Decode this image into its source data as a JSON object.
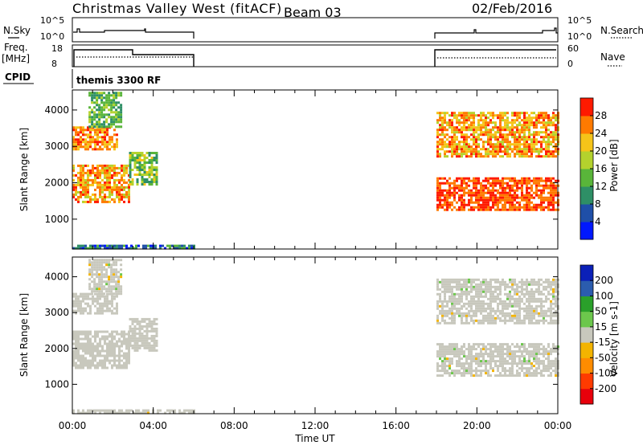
{
  "header": {
    "station": "Christmas Valley West (fitACF)",
    "beam": "Beam 03",
    "date": "02/Feb/2016"
  },
  "status_labels": {
    "nsky": "N.Sky",
    "freq": "Freq.",
    "freq_unit": "[MHz]",
    "cpid": "CPID",
    "nsearch": "N.Search",
    "nave": "Nave",
    "cpid_name": "themis 3300 RF"
  },
  "status_ticks": {
    "nsky": [
      "10^5",
      "10^0"
    ],
    "freq": [
      "18",
      "8"
    ],
    "nave": [
      "60",
      "0"
    ]
  },
  "colors": {
    "power": [
      "#0018ff",
      "#1f4fa8",
      "#2e8f66",
      "#59b53a",
      "#b4d22d",
      "#f5c419",
      "#ff7a00",
      "#ff1a00"
    ],
    "velocity": [
      "#e8000b",
      "#ff3b00",
      "#ff8c00",
      "#f3b400",
      "#c8c8bd",
      "#6cc74c",
      "#2aa02a",
      "#2b5cae",
      "#0b20b8"
    ]
  },
  "chart_data": [
    {
      "type": "heatmap",
      "panel": "power",
      "ylabel": "Slant Range [km]",
      "yticks": [
        1000,
        2000,
        3000,
        4000
      ],
      "ylim": [
        180,
        4550
      ],
      "xlim": [
        0,
        24
      ],
      "colorbar": {
        "label": "Power [dB]",
        "ticks": [
          "4",
          "8",
          "12",
          "16",
          "20",
          "24",
          "28"
        ],
        "range": [
          0,
          32
        ]
      },
      "echo_bands": [
        {
          "start": 0.0,
          "end": 6.0,
          "range_km": [
            200,
            300
          ],
          "power_db": [
            2,
            14
          ]
        },
        {
          "start": 0.0,
          "end": 2.8,
          "range_km": [
            1450,
            2500
          ],
          "power_db": [
            18,
            30
          ]
        },
        {
          "start": 2.8,
          "end": 4.2,
          "range_km": [
            1950,
            2850
          ],
          "power_db": [
            8,
            22
          ]
        },
        {
          "start": 0.0,
          "end": 2.2,
          "range_km": [
            2950,
            3550
          ],
          "power_db": [
            20,
            30
          ]
        },
        {
          "start": 0.8,
          "end": 2.4,
          "range_km": [
            3550,
            4500
          ],
          "power_db": [
            8,
            18
          ]
        },
        {
          "start": 18.0,
          "end": 24.0,
          "range_km": [
            1250,
            2150
          ],
          "power_db": [
            24,
            32
          ]
        },
        {
          "start": 18.0,
          "end": 24.0,
          "range_km": [
            2700,
            3950
          ],
          "power_db": [
            18,
            30
          ]
        }
      ]
    },
    {
      "type": "heatmap",
      "panel": "velocity",
      "ylabel": "Slant Range [km]",
      "yticks": [
        1000,
        2000,
        3000,
        4000
      ],
      "ylim": [
        180,
        4550
      ],
      "xlim": [
        0,
        24
      ],
      "xticks": [
        "00:00",
        "04:00",
        "08:00",
        "12:00",
        "16:00",
        "20:00",
        "00:00"
      ],
      "xlabel": "Time UT",
      "colorbar": {
        "label": "Velocity [m s-1]",
        "ticks": [
          "200",
          "100",
          "50",
          "15",
          "-15",
          "-50",
          "-100",
          "-200"
        ],
        "range": [
          -250,
          250
        ]
      },
      "echo_bands": [
        {
          "start": 0.0,
          "end": 6.0,
          "range_km": [
            200,
            300
          ],
          "velocity_ms": [
            -30,
            30
          ]
        },
        {
          "start": 0.0,
          "end": 2.8,
          "range_km": [
            1450,
            2500
          ],
          "velocity_ms": [
            -15,
            15
          ]
        },
        {
          "start": 2.8,
          "end": 4.2,
          "range_km": [
            1950,
            2850
          ],
          "velocity_ms": [
            -15,
            15
          ]
        },
        {
          "start": 0.0,
          "end": 2.2,
          "range_km": [
            2950,
            3550
          ],
          "velocity_ms": [
            -15,
            15
          ]
        },
        {
          "start": 0.8,
          "end": 2.4,
          "range_km": [
            3550,
            4500
          ],
          "velocity_ms": [
            -60,
            60
          ]
        },
        {
          "start": 18.0,
          "end": 24.0,
          "range_km": [
            1250,
            2150
          ],
          "velocity_ms": [
            -40,
            40
          ]
        },
        {
          "start": 18.0,
          "end": 24.0,
          "range_km": [
            2700,
            3950
          ],
          "velocity_ms": [
            -40,
            40
          ]
        }
      ]
    }
  ]
}
